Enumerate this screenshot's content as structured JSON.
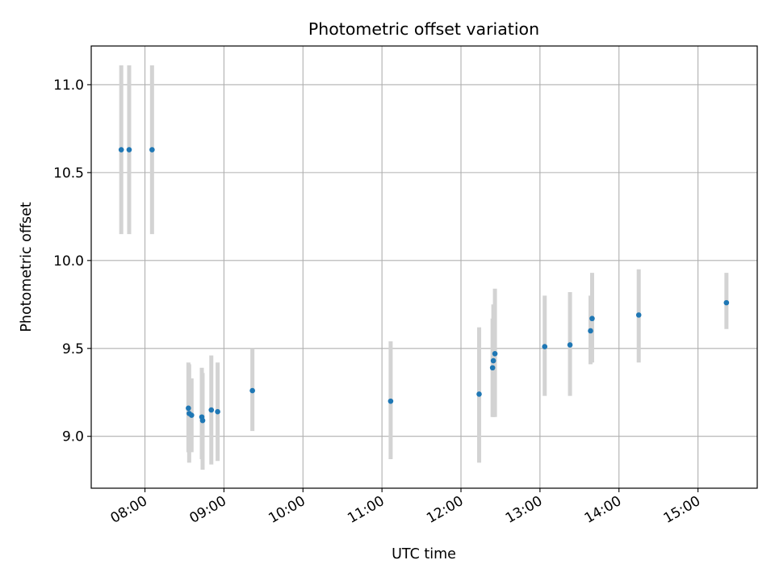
{
  "chart_data": {
    "type": "scatter",
    "title": "Photometric offset variation",
    "xlabel": "UTC time",
    "ylabel": "Photometric offset",
    "grid": true,
    "xlim": [
      7.32,
      15.75
    ],
    "ylim": [
      8.705,
      11.22
    ],
    "xticks": [
      {
        "value": 8,
        "label": "08:00"
      },
      {
        "value": 9,
        "label": "09:00"
      },
      {
        "value": 10,
        "label": "10:00"
      },
      {
        "value": 11,
        "label": "11:00"
      },
      {
        "value": 12,
        "label": "12:00"
      },
      {
        "value": 13,
        "label": "13:00"
      },
      {
        "value": 14,
        "label": "14:00"
      },
      {
        "value": 15,
        "label": "15:00"
      }
    ],
    "yticks": [
      {
        "value": 9.0,
        "label": "9.0"
      },
      {
        "value": 9.5,
        "label": "9.5"
      },
      {
        "value": 10.0,
        "label": "10.0"
      },
      {
        "value": 10.5,
        "label": "10.5"
      },
      {
        "value": 11.0,
        "label": "11.0"
      }
    ],
    "colors": {
      "point": "#1f77b4",
      "errorbar": "#d3d3d3",
      "grid": "#b0b0b0"
    },
    "points": [
      {
        "x": 7.7,
        "y": 10.63,
        "ylo": 10.15,
        "yhi": 11.11
      },
      {
        "x": 7.8,
        "y": 10.63,
        "ylo": 10.15,
        "yhi": 11.11
      },
      {
        "x": 8.09,
        "y": 10.63,
        "ylo": 10.15,
        "yhi": 11.11
      },
      {
        "x": 8.55,
        "y": 9.16,
        "ylo": 8.91,
        "yhi": 9.42
      },
      {
        "x": 8.56,
        "y": 9.13,
        "ylo": 8.85,
        "yhi": 9.41
      },
      {
        "x": 8.59,
        "y": 9.12,
        "ylo": 8.91,
        "yhi": 9.33
      },
      {
        "x": 8.72,
        "y": 9.11,
        "ylo": 8.87,
        "yhi": 9.39
      },
      {
        "x": 8.73,
        "y": 9.09,
        "ylo": 8.81,
        "yhi": 9.36
      },
      {
        "x": 8.84,
        "y": 9.15,
        "ylo": 8.84,
        "yhi": 9.46
      },
      {
        "x": 8.92,
        "y": 9.14,
        "ylo": 8.86,
        "yhi": 9.42
      },
      {
        "x": 9.36,
        "y": 9.26,
        "ylo": 9.03,
        "yhi": 9.5
      },
      {
        "x": 11.11,
        "y": 9.2,
        "ylo": 8.87,
        "yhi": 9.54
      },
      {
        "x": 12.23,
        "y": 9.24,
        "ylo": 8.85,
        "yhi": 9.62
      },
      {
        "x": 12.4,
        "y": 9.39,
        "ylo": 9.11,
        "yhi": 9.67
      },
      {
        "x": 12.41,
        "y": 9.43,
        "ylo": 9.11,
        "yhi": 9.75
      },
      {
        "x": 12.43,
        "y": 9.47,
        "ylo": 9.11,
        "yhi": 9.84
      },
      {
        "x": 13.06,
        "y": 9.51,
        "ylo": 9.23,
        "yhi": 9.8
      },
      {
        "x": 13.38,
        "y": 9.52,
        "ylo": 9.23,
        "yhi": 9.82
      },
      {
        "x": 13.64,
        "y": 9.6,
        "ylo": 9.41,
        "yhi": 9.8
      },
      {
        "x": 13.66,
        "y": 9.67,
        "ylo": 9.42,
        "yhi": 9.93
      },
      {
        "x": 14.25,
        "y": 9.69,
        "ylo": 9.42,
        "yhi": 9.95
      },
      {
        "x": 15.36,
        "y": 9.76,
        "ylo": 9.61,
        "yhi": 9.93
      }
    ]
  }
}
